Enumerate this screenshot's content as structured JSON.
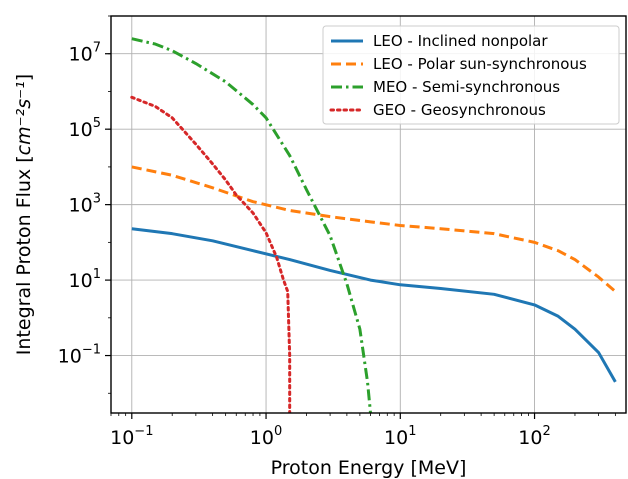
{
  "chart_data": {
    "type": "line",
    "xlabel": "Proton Energy [MeV]",
    "ylabel_main": "Integral Proton Flux [",
    "ylabel_units": "cm⁻²s⁻¹",
    "ylabel_close": "]",
    "x_scale": "log",
    "y_scale": "log",
    "xlim": [
      0.07,
      480
    ],
    "ylim": [
      0.003,
      100000000
    ],
    "grid": true,
    "legend_position": "top-right",
    "x_ticks": [
      {
        "value": 0.1,
        "base": "10",
        "exp": "−1"
      },
      {
        "value": 1,
        "base": "10",
        "exp": "0"
      },
      {
        "value": 10,
        "base": "10",
        "exp": "1"
      },
      {
        "value": 100,
        "base": "10",
        "exp": "2"
      }
    ],
    "y_ticks": [
      {
        "value": 0.1,
        "base": "10",
        "exp": "−1"
      },
      {
        "value": 10,
        "base": "10",
        "exp": "1"
      },
      {
        "value": 1000,
        "base": "10",
        "exp": "3"
      },
      {
        "value": 100000,
        "base": "10",
        "exp": "5"
      },
      {
        "value": 10000000,
        "base": "10",
        "exp": "7"
      }
    ],
    "series": [
      {
        "name": "LEO - Inclined nonpolar",
        "color": "#1f77b4",
        "dash": "solid",
        "x": [
          0.1,
          0.2,
          0.4,
          0.8,
          1.5,
          3,
          6,
          10,
          20,
          50,
          100,
          150,
          200,
          300,
          400
        ],
        "y": [
          230,
          170,
          110,
          60,
          35,
          18,
          10,
          7.5,
          6,
          4.2,
          2.2,
          1.1,
          0.5,
          0.12,
          0.02
        ]
      },
      {
        "name": "LEO - Polar sun-synchronous",
        "color": "#ff7f0e",
        "dash": "dashed",
        "x": [
          0.1,
          0.2,
          0.4,
          0.8,
          1.5,
          3,
          6,
          10,
          20,
          50,
          100,
          150,
          200,
          300,
          400
        ],
        "y": [
          10000,
          6000,
          2800,
          1200,
          700,
          480,
          350,
          280,
          230,
          170,
          100,
          60,
          35,
          12,
          5
        ]
      },
      {
        "name": "MEO - Semi-synchronous",
        "color": "#2ca02c",
        "dash": "dashdot",
        "x": [
          0.1,
          0.15,
          0.2,
          0.3,
          0.5,
          0.8,
          1,
          1.5,
          2,
          3,
          4,
          5,
          5.7,
          6
        ],
        "y": [
          25000000,
          18000000,
          12000000,
          5500000,
          1800000,
          450000,
          200000,
          20000,
          2500,
          150,
          8,
          0.5,
          0.02,
          0.003
        ]
      },
      {
        "name": "GEO - Geosynchronous",
        "color": "#d62728",
        "dash": "dotted",
        "x": [
          0.1,
          0.15,
          0.2,
          0.3,
          0.4,
          0.5,
          0.6,
          0.8,
          1,
          1.2,
          1.35,
          1.45,
          1.5,
          1.5
        ],
        "y": [
          700000,
          400000,
          200000,
          40000,
          12000,
          4500,
          1800,
          600,
          180,
          40,
          10,
          5,
          0.1,
          0.003
        ]
      }
    ]
  }
}
